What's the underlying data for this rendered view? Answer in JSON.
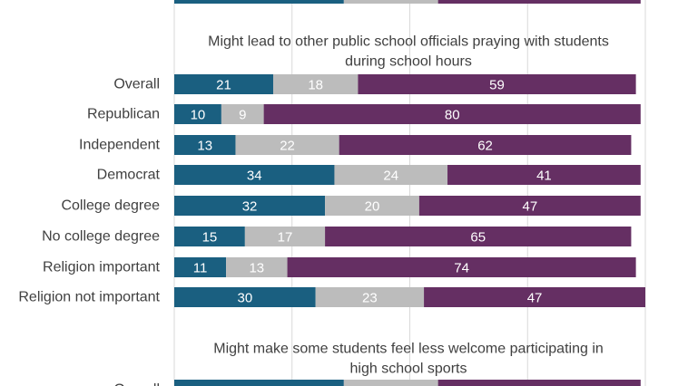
{
  "colors": {
    "segment_1": "#1a5f80",
    "segment_2": "#bcbcbc",
    "segment_3": "#652f63",
    "gridline": "#d9d9d9",
    "axis_label": "#404040",
    "value_label": "#ffffff"
  },
  "chart_data": {
    "type": "bar",
    "orientation": "horizontal-stacked",
    "grid": true,
    "xlim": [
      0,
      100
    ],
    "groups": [
      {
        "title_lines": [],
        "partial": "top-cut",
        "rows": [
          {
            "label": "",
            "values": [
              null,
              null,
              null
            ]
          }
        ]
      },
      {
        "title_lines": [
          "Might lead to other public school officials praying with students",
          "during school hours"
        ],
        "rows": [
          {
            "label": "Overall",
            "values": [
              21,
              18,
              59
            ]
          },
          {
            "label": "Republican",
            "values": [
              10,
              9,
              80
            ]
          },
          {
            "label": "Independent",
            "values": [
              13,
              22,
              62
            ]
          },
          {
            "label": "Democrat",
            "values": [
              34,
              24,
              41
            ]
          },
          {
            "label": "College degree",
            "values": [
              32,
              20,
              47
            ]
          },
          {
            "label": "No college degree",
            "values": [
              15,
              17,
              65
            ]
          },
          {
            "label": "Religion important",
            "values": [
              11,
              13,
              74
            ]
          },
          {
            "label": "Religion not important",
            "values": [
              30,
              23,
              47
            ]
          }
        ]
      },
      {
        "title_lines": [
          "Might make some students feel less welcome participating in",
          "high school sports"
        ],
        "partial": "bottom-cut",
        "rows": [
          {
            "label": "Overall",
            "values": [
              null,
              null,
              null
            ]
          }
        ]
      }
    ]
  }
}
